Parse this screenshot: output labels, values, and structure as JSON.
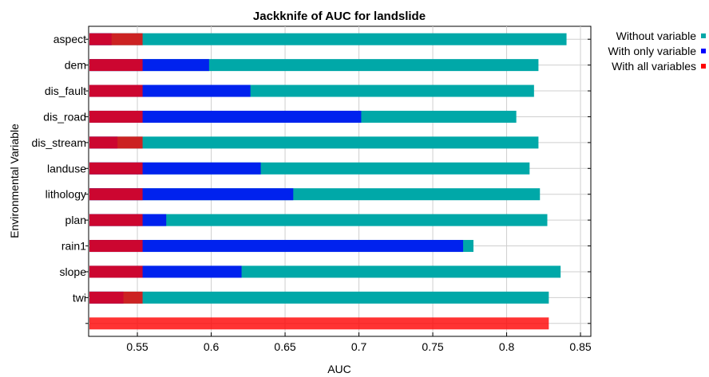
{
  "chart_data": {
    "type": "bar",
    "title": "Jackknife of AUC for landslide",
    "xlabel": "AUC",
    "ylabel": "Environmental Variable",
    "xlim": [
      0.517,
      0.857
    ],
    "xticks": [
      "0.55",
      "0.6",
      "0.65",
      "0.7",
      "0.75",
      "0.8",
      "0.85"
    ],
    "grid": true,
    "legend_position": "top-right",
    "categories": [
      "aspect",
      "dem",
      "dis_fault",
      "dis_road",
      "dis_stream",
      "landuse",
      "lithology",
      "plan",
      "rain1",
      "slope",
      "twi",
      ""
    ],
    "series": [
      {
        "name": "Without variable",
        "color": "#00a8a8",
        "values": [
          0.84,
          0.821,
          0.818,
          0.806,
          0.821,
          0.815,
          0.822,
          0.827,
          0.777,
          0.836,
          0.828,
          null
        ]
      },
      {
        "name": "With only variable",
        "color": "#0000ff",
        "values": [
          0.532,
          0.598,
          0.626,
          0.701,
          0.536,
          0.633,
          0.655,
          0.569,
          0.77,
          0.62,
          0.54,
          null
        ]
      },
      {
        "name": "With all variables",
        "color": "#ff0000",
        "values": [
          0.553,
          0.553,
          0.553,
          0.553,
          0.553,
          0.553,
          0.553,
          0.553,
          0.553,
          0.553,
          0.553,
          0.828
        ]
      }
    ]
  }
}
